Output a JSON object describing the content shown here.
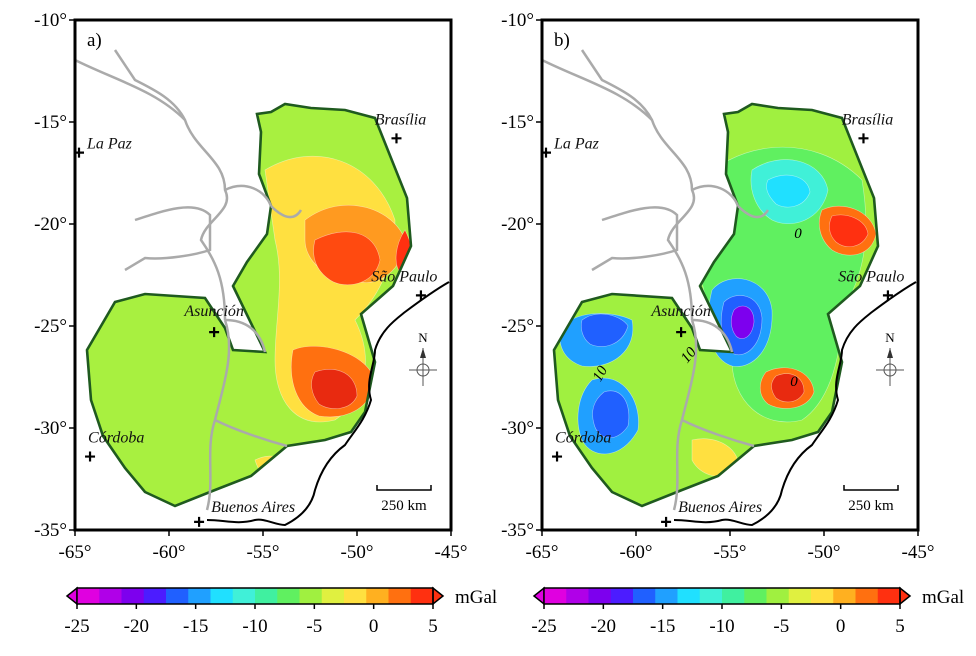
{
  "panels": [
    {
      "label": "a)",
      "cities": [
        {
          "name": "Brasília",
          "lon": -47.9,
          "lat": -15.8
        },
        {
          "name": "La Paz",
          "lon": -68.1,
          "lat": -16.5
        },
        {
          "name": "São Paulo",
          "lon": -46.6,
          "lat": -23.5
        },
        {
          "name": "Asunción",
          "lon": -57.6,
          "lat": -25.3
        },
        {
          "name": "Córdoba",
          "lon": -64.2,
          "lat": -31.4
        },
        {
          "name": "Buenos Aires",
          "lon": -58.4,
          "lat": -34.6
        }
      ],
      "contour_labels": [],
      "scalebar": "250 km",
      "north": "N"
    },
    {
      "label": "b)",
      "cities": [
        {
          "name": "Brasília",
          "lon": -47.9,
          "lat": -15.8
        },
        {
          "name": "La Paz",
          "lon": -68.1,
          "lat": -16.5
        },
        {
          "name": "São Paulo",
          "lon": -46.6,
          "lat": -23.5
        },
        {
          "name": "Asunción",
          "lon": -57.6,
          "lat": -25.3
        },
        {
          "name": "Córdoba",
          "lon": -64.2,
          "lat": -31.4
        },
        {
          "name": "Buenos Aires",
          "lon": -58.4,
          "lat": -34.6
        }
      ],
      "contour_labels": [
        "10",
        "10",
        "0",
        "0"
      ],
      "scalebar": "250 km",
      "north": "N"
    }
  ],
  "axes": {
    "lon_ticks": [
      "-65°",
      "-60°",
      "-55°",
      "-50°",
      "-45°"
    ],
    "lat_ticks": [
      "-10°",
      "-15°",
      "-20°",
      "-25°",
      "-30°",
      "-35°"
    ],
    "lon_range": [
      -65,
      -45
    ],
    "lat_range": [
      -35,
      -10
    ]
  },
  "colorbar": {
    "unit": "mGal",
    "ticks": [
      "-25",
      "-20",
      "-15",
      "-10",
      "-5",
      "0",
      "5"
    ],
    "range": [
      -25,
      5
    ],
    "colors": [
      "#e000e0",
      "#b000e8",
      "#7d00ee",
      "#4c1cff",
      "#2060ff",
      "#20a0ff",
      "#20e0ff",
      "#40f0d8",
      "#40f0a0",
      "#60f060",
      "#a0f040",
      "#e0f040",
      "#ffe040",
      "#ffb020",
      "#ff7010",
      "#ff3010"
    ]
  }
}
